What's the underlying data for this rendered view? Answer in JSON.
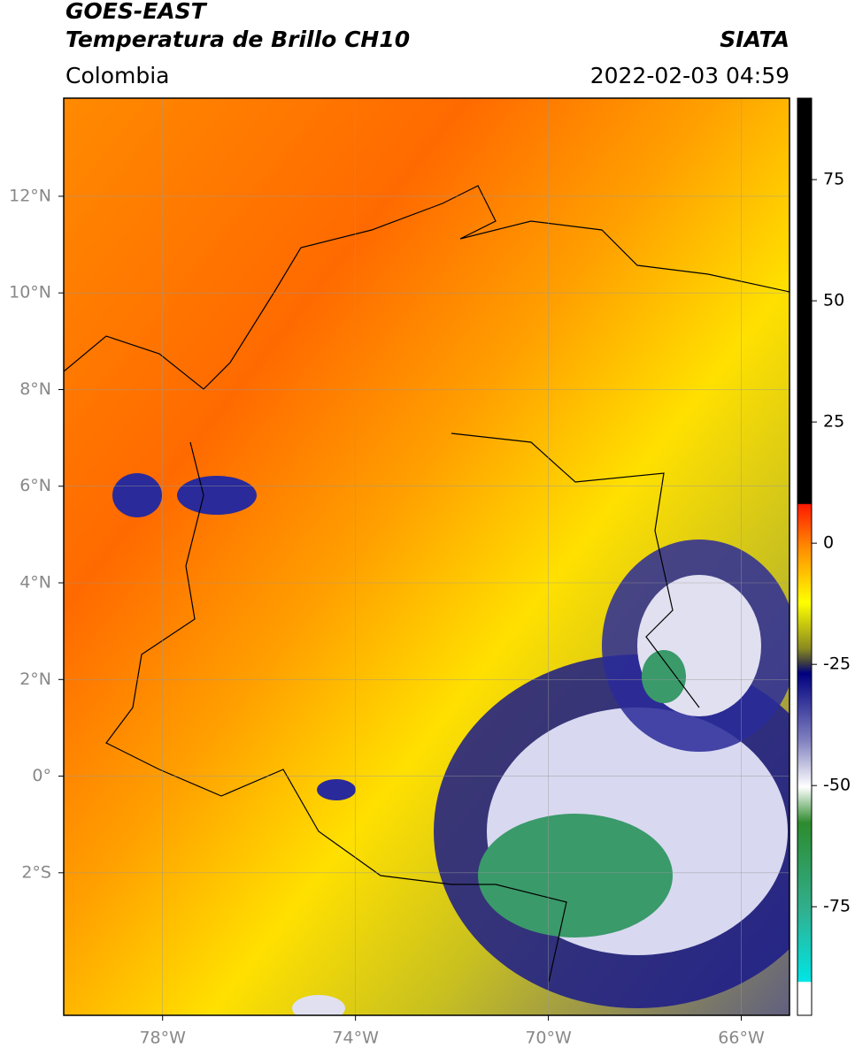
{
  "header": {
    "title": "GOES-EAST",
    "subtitle": "Temperatura de Brillo CH10",
    "region": "Colombia",
    "source": "SIATA",
    "datetime": "2022-02-03 04:59"
  },
  "map": {
    "xlim": [
      -80.05,
      -65.0
    ],
    "ylim": [
      -4.95,
      14.03
    ],
    "xticks": [
      {
        "value": -78,
        "label": "78°W"
      },
      {
        "value": -74,
        "label": "74°W"
      },
      {
        "value": -70,
        "label": "70°W"
      },
      {
        "value": -66,
        "label": "66°W"
      }
    ],
    "yticks": [
      {
        "value": 12,
        "label": "12°N"
      },
      {
        "value": 10,
        "label": "10°N"
      },
      {
        "value": 8,
        "label": "8°N"
      },
      {
        "value": 6,
        "label": "6°N"
      },
      {
        "value": 4,
        "label": "4°N"
      },
      {
        "value": 2,
        "label": "2°N"
      },
      {
        "value": 0,
        "label": "0°"
      },
      {
        "value": -2,
        "label": "2°S"
      }
    ],
    "grid": true
  },
  "colorbar": {
    "clim": [
      -97.4,
      91.8
    ],
    "ticks": [
      75,
      50,
      25,
      0,
      -25,
      -50,
      -75
    ]
  }
}
